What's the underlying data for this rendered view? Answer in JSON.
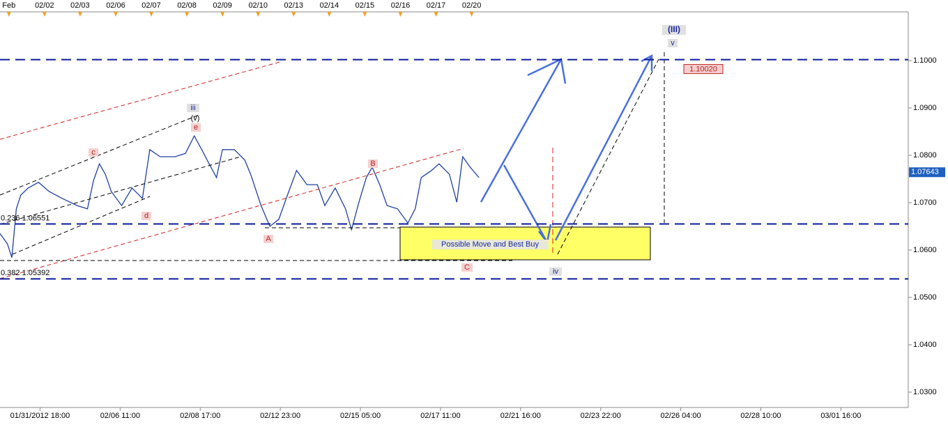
{
  "chart_data": {
    "type": "line",
    "color": "#2040a0",
    "xlim": [
      -27,
      584
    ],
    "ylim": [
      1.02676,
      1.11029
    ],
    "xticks": [
      {
        "value": 0,
        "label": "01/31/2012 18:00"
      },
      {
        "value": 54,
        "label": "02/06 11:00"
      },
      {
        "value": 108,
        "label": "02/08 17:00"
      },
      {
        "value": 162,
        "label": "02/12 23:00"
      },
      {
        "value": 216,
        "label": "02/15 05:00"
      },
      {
        "value": 270,
        "label": "02/17 11:00"
      },
      {
        "value": 324,
        "label": "02/21 16:00"
      },
      {
        "value": 378,
        "label": "02/23 22:00"
      },
      {
        "value": 432,
        "label": "02/26 04:00"
      },
      {
        "value": 486,
        "label": "02/28 10:00"
      },
      {
        "value": 540,
        "label": "03/01 16:00"
      }
    ],
    "x2ticks": [
      {
        "value": -21,
        "label": "Feb"
      },
      {
        "value": 3,
        "label": "02/02"
      },
      {
        "value": 27,
        "label": "02/03"
      },
      {
        "value": 51,
        "label": "02/06"
      },
      {
        "value": 75,
        "label": "02/07"
      },
      {
        "value": 99,
        "label": "02/08"
      },
      {
        "value": 123,
        "label": "02/09"
      },
      {
        "value": 147,
        "label": "02/10"
      },
      {
        "value": 171,
        "label": "02/13"
      },
      {
        "value": 195,
        "label": "02/14"
      },
      {
        "value": 219,
        "label": "02/15"
      },
      {
        "value": 243,
        "label": "02/16"
      },
      {
        "value": 267,
        "label": "02/17"
      },
      {
        "value": 291,
        "label": "02/20"
      }
    ],
    "yticks": [
      {
        "value": 1.1,
        "label": "1.1000"
      },
      {
        "value": 1.09,
        "label": "1.0900"
      },
      {
        "value": 1.08,
        "label": "1.0800"
      },
      {
        "value": 1.07,
        "label": "1.0700"
      },
      {
        "value": 1.06,
        "label": "1.0600"
      },
      {
        "value": 1.05,
        "label": "1.0500"
      },
      {
        "value": 1.04,
        "label": "1.0400"
      },
      {
        "value": 1.03,
        "label": "1.0300"
      }
    ],
    "x": [
      -27,
      -22,
      -19,
      -16,
      -13,
      -8,
      -1,
      6,
      15,
      25,
      32,
      36,
      40,
      44,
      48,
      55,
      62,
      69,
      74,
      81,
      91,
      98,
      104,
      109,
      114,
      119,
      123,
      131,
      138,
      142,
      149,
      155,
      161,
      166,
      173,
      180,
      187,
      192,
      199,
      206,
      210,
      215,
      220,
      224,
      229,
      234,
      241,
      248,
      253,
      257,
      264,
      269,
      276,
      281,
      285,
      290,
      296
    ],
    "values": [
      1.0635,
      1.0613,
      1.0584,
      1.0687,
      1.0716,
      1.0731,
      1.0743,
      1.0724,
      1.0709,
      1.0694,
      1.0687,
      1.0746,
      1.0782,
      1.076,
      1.0724,
      1.0694,
      1.0731,
      1.0709,
      1.0812,
      1.0797,
      1.0797,
      1.0804,
      1.0841,
      1.0812,
      1.0782,
      1.0753,
      1.0812,
      1.0812,
      1.079,
      1.076,
      1.0694,
      1.065,
      1.0665,
      1.0709,
      1.0768,
      1.0738,
      1.0738,
      1.0694,
      1.0731,
      1.0687,
      1.0643,
      1.0701,
      1.0753,
      1.0775,
      1.0738,
      1.0694,
      1.0687,
      1.0657,
      1.0687,
      1.0753,
      1.0768,
      1.0782,
      1.076,
      1.0701,
      1.0797,
      1.0775,
      1.0753
    ],
    "last_price": 1.07643,
    "levels": [
      {
        "value": 1.1002,
        "label": "1.10020"
      },
      {
        "value": 1.06551,
        "label": "0.236 1.06551"
      },
      {
        "value": 1.05392,
        "label": "0.382 1.05392"
      }
    ],
    "annotations": [
      "(III)",
      "v",
      "iii",
      "(v)",
      "e",
      "c",
      "d",
      "A",
      "B",
      "C",
      "iv",
      "Possible Move and Best Buy"
    ]
  }
}
